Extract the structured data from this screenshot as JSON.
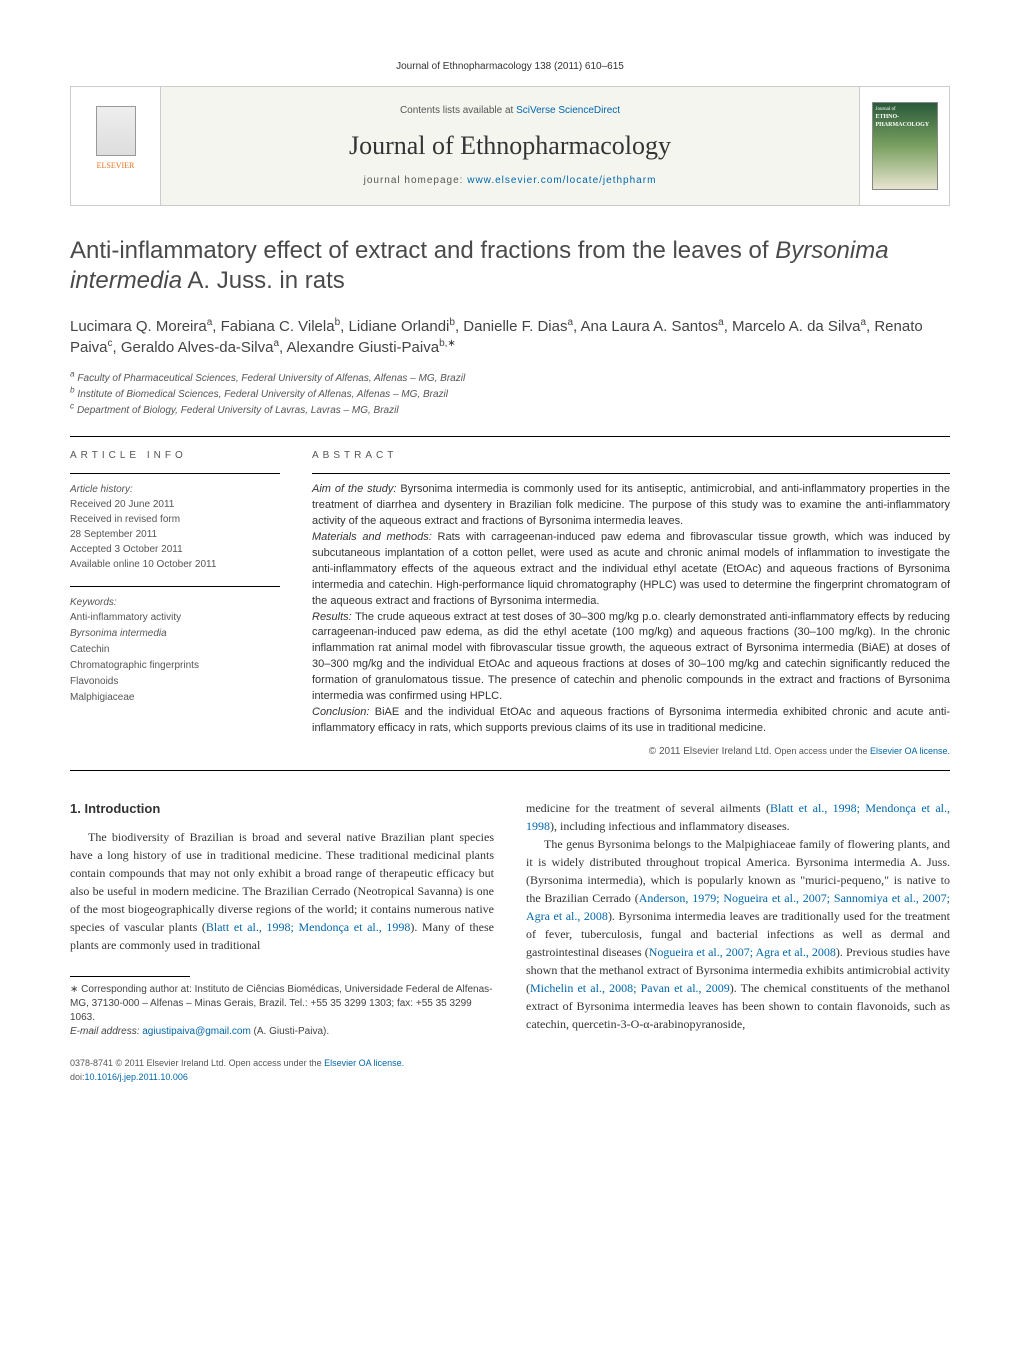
{
  "journal": {
    "citation": "Journal of Ethnopharmacology 138 (2011) 610–615",
    "contents_prefix": "Contents lists available at ",
    "contents_link": "SciVerse ScienceDirect",
    "name": "Journal of Ethnopharmacology",
    "homepage_prefix": "journal homepage: ",
    "homepage_link": "www.elsevier.com/locate/jethpharm",
    "publisher_logo": "ELSEVIER",
    "cover_text_top": "Journal of",
    "cover_text_mid": "ETHNO-PHARMACOLOGY"
  },
  "article": {
    "title_pre": "Anti-inflammatory effect of extract and fractions from the leaves of ",
    "title_species": "Byrsonima intermedia",
    "title_post": " A. Juss. in rats",
    "authors_html": "Lucimara Q. Moreira<sup>a</sup>, Fabiana C. Vilela<sup>b</sup>, Lidiane Orlandi<sup>b</sup>, Danielle F. Dias<sup>a</sup>, Ana Laura A. Santos<sup>a</sup>, Marcelo A. da Silva<sup>a</sup>, Renato Paiva<sup>c</sup>, Geraldo Alves-da-Silva<sup>a</sup>, Alexandre Giusti-Paiva<sup>b,</sup>",
    "affiliations": [
      "a Faculty of Pharmaceutical Sciences, Federal University of Alfenas, Alfenas – MG, Brazil",
      "b Institute of Biomedical Sciences, Federal University of Alfenas, Alfenas – MG, Brazil",
      "c Department of Biology, Federal University of Lavras, Lavras – MG, Brazil"
    ]
  },
  "info": {
    "heading": "article info",
    "history_label": "Article history:",
    "history": [
      "Received 20 June 2011",
      "Received in revised form",
      "28 September 2011",
      "Accepted 3 October 2011",
      "Available online 10 October 2011"
    ],
    "keywords_label": "Keywords:",
    "keywords": [
      "Anti-inflammatory activity",
      "Byrsonima intermedia",
      "Catechin",
      "Chromatographic fingerprints",
      "Flavonoids",
      "Malphigiaceae"
    ]
  },
  "abstract": {
    "heading": "abstract",
    "aim_lead": "Aim of the study: ",
    "aim": "Byrsonima intermedia is commonly used for its antiseptic, antimicrobial, and anti-inflammatory properties in the treatment of diarrhea and dysentery in Brazilian folk medicine. The purpose of this study was to examine the anti-inflammatory activity of the aqueous extract and fractions of Byrsonima intermedia leaves.",
    "mat_lead": "Materials and methods: ",
    "mat": "Rats with carrageenan-induced paw edema and fibrovascular tissue growth, which was induced by subcutaneous implantation of a cotton pellet, were used as acute and chronic animal models of inflammation to investigate the anti-inflammatory effects of the aqueous extract and the individual ethyl acetate (EtOAc) and aqueous fractions of Byrsonima intermedia and catechin. High-performance liquid chromatography (HPLC) was used to determine the fingerprint chromatogram of the aqueous extract and fractions of Byrsonima intermedia.",
    "res_lead": "Results: ",
    "res": "The crude aqueous extract at test doses of 30–300 mg/kg p.o. clearly demonstrated anti-inflammatory effects by reducing carrageenan-induced paw edema, as did the ethyl acetate (100 mg/kg) and aqueous fractions (30–100 mg/kg). In the chronic inflammation rat animal model with fibrovascular tissue growth, the aqueous extract of Byrsonima intermedia (BiAE) at doses of 30–300 mg/kg and the individual EtOAc and aqueous fractions at doses of 30–100 mg/kg and catechin significantly reduced the formation of granulomatous tissue. The presence of catechin and phenolic compounds in the extract and fractions of Byrsonima intermedia was confirmed using HPLC.",
    "con_lead": "Conclusion: ",
    "con": "BiAE and the individual EtOAc and aqueous fractions of Byrsonima intermedia exhibited chronic and acute anti-inflammatory efficacy in rats, which supports previous claims of its use in traditional medicine.",
    "copyright": "© 2011 Elsevier Ireland Ltd. ",
    "license_prefix": "Open access under the ",
    "license_link": "Elsevier OA license."
  },
  "body": {
    "section_heading": "1. Introduction",
    "col1_p1_a": "The biodiversity of Brazilian is broad and several native Brazilian plant species have a long history of use in traditional medicine. These traditional medicinal plants contain compounds that may not only exhibit a broad range of therapeutic efficacy but also be useful in modern medicine. The Brazilian Cerrado (Neotropical Savanna) is one of the most biogeographically diverse regions of the world; it contains numerous native species of vascular plants (",
    "col1_p1_link": "Blatt et al., 1998; Mendonça et al., 1998",
    "col1_p1_b": "). Many of these plants are commonly used in traditional",
    "col2_p1_a": "medicine for the treatment of several ailments (",
    "col2_p1_link": "Blatt et al., 1998; Mendonça et al., 1998",
    "col2_p1_b": "), including infectious and inflammatory diseases.",
    "col2_p2_a": "The genus Byrsonima belongs to the Malpighiaceae family of flowering plants, and it is widely distributed throughout tropical America. Byrsonima intermedia A. Juss. (Byrsonima intermedia), which is popularly known as \"murici-pequeno,\" is native to the Brazilian Cerrado (",
    "col2_p2_link1": "Anderson, 1979; Nogueira et al., 2007; Sannomiya et al., 2007; Agra et al., 2008",
    "col2_p2_b": "). Byrsonima intermedia leaves are traditionally used for the treatment of fever, tuberculosis, fungal and bacterial infections as well as dermal and gastrointestinal diseases (",
    "col2_p2_link2": "Nogueira et al., 2007; Agra et al., 2008",
    "col2_p2_c": "). Previous studies have shown that the methanol extract of Byrsonima intermedia exhibits antimicrobial activity (",
    "col2_p2_link3": "Michelin et al., 2008; Pavan et al., 2009",
    "col2_p2_d": "). The chemical constituents of the methanol extract of Byrsonima intermedia leaves has been shown to contain flavonoids, such as catechin, quercetin-3-O-α-arabinopyranoside,"
  },
  "footnotes": {
    "corr_marker": "∗",
    "corr": " Corresponding author at: Instituto de Ciências Biomédicas, Universidade Federal de Alfenas-MG, 37130-000 – Alfenas – Minas Gerais, Brazil. Tel.: +55 35 3299 1303; fax: +55 35 3299 1063.",
    "email_label": "E-mail address: ",
    "email": "agiustipaiva@gmail.com",
    "email_suffix": " (A. Giusti-Paiva)."
  },
  "bottom": {
    "issn": "0378-8741 © 2011 Elsevier Ireland Ltd. ",
    "license_prefix": "Open access under the ",
    "license_link": "Elsevier OA license.",
    "doi_label": "doi:",
    "doi": "10.1016/j.jep.2011.10.006"
  },
  "colors": {
    "link": "#0066aa",
    "text": "#333333",
    "muted": "#555555",
    "elsevier_orange": "#e9711c",
    "banner_bg": "#f5f5f0",
    "cover_green_top": "#2a5a3a",
    "cover_green_mid": "#7aa060"
  }
}
